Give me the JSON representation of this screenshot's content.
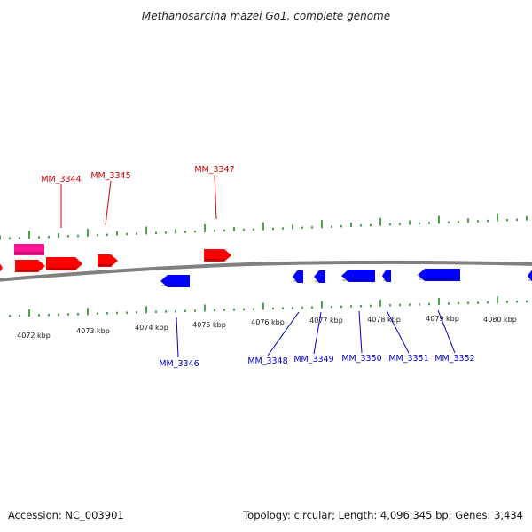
{
  "title": "Methanosarcina mazei Go1, complete genome",
  "accession": "Accession: NC_003901",
  "summary": "Topology: circular; Length: 4,096,345 bp; Genes: 3,434",
  "colors": {
    "forward_gene": "#ff0000",
    "reverse_gene": "#0000ff",
    "rna_gene": "#ff1493",
    "backbone": "#808080",
    "ticks": "#228b22",
    "forward_label": "#cc0000",
    "reverse_label": "#0000cc"
  },
  "ticks": [
    {
      "label": "4072 kbp"
    },
    {
      "label": "4073 kbp"
    },
    {
      "label": "4074 kbp"
    },
    {
      "label": "4075 kbp"
    },
    {
      "label": "4076 kbp"
    },
    {
      "label": "4077 kbp"
    },
    {
      "label": "4078 kbp"
    },
    {
      "label": "4079 kbp"
    },
    {
      "label": "4080 kbp"
    }
  ],
  "genes": [
    {
      "id": "MM_3344",
      "strand": "forward"
    },
    {
      "id": "MM_3345",
      "strand": "forward"
    },
    {
      "id": "MM_3347",
      "strand": "forward"
    },
    {
      "id": "MM_3346",
      "strand": "reverse"
    },
    {
      "id": "MM_3348",
      "strand": "reverse"
    },
    {
      "id": "MM_3349",
      "strand": "reverse"
    },
    {
      "id": "MM_3350",
      "strand": "reverse"
    },
    {
      "id": "MM_3351",
      "strand": "reverse"
    },
    {
      "id": "MM_3352",
      "strand": "reverse"
    }
  ]
}
